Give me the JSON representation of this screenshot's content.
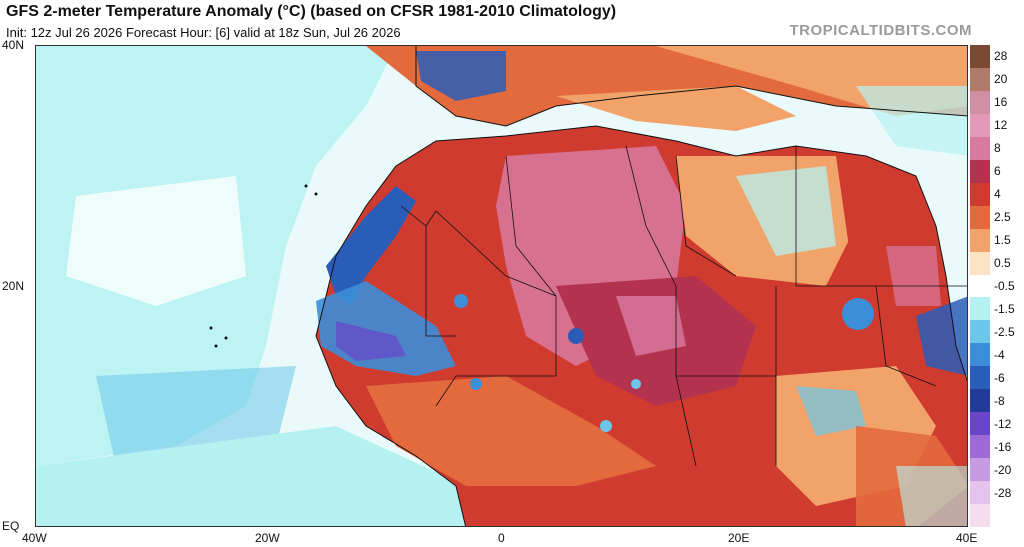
{
  "header": {
    "title": "GFS 2-meter Temperature Anomaly (°C) (based on CFSR 1981-2010 Climatology)",
    "subtitle": "Init: 12z Jul 26 2026   Forecast Hour: [6]   valid at 18z Sun, Jul 26 2026",
    "brand": "TROPICALTIDBITS.COM"
  },
  "axes": {
    "lat_labels": [
      "40N",
      "20N",
      "EQ"
    ],
    "lon_labels": [
      "40W",
      "20W",
      "0",
      "20E",
      "40E"
    ]
  },
  "colorbar": {
    "labels": [
      "28",
      "20",
      "16",
      "12",
      "8",
      "6",
      "4",
      "2.5",
      "1.5",
      "0.5",
      "-0.5",
      "-1.5",
      "-2.5",
      "-4",
      "-6",
      "-8",
      "-12",
      "-16",
      "-20",
      "-28"
    ],
    "colors": [
      "#7a4a32",
      "#b07a6a",
      "#cf8fa3",
      "#e39ab8",
      "#d97aa0",
      "#b3334f",
      "#cf3b2f",
      "#e36a3d",
      "#f2a36a",
      "#fbe3c4",
      "#ffffff",
      "#b6f1f2",
      "#6cc7ea",
      "#3d8ed8",
      "#2a5db8",
      "#223b96",
      "#6a45c9",
      "#9d6ad8",
      "#c79ae4",
      "#e6c2ee",
      "#f4dcee"
    ]
  },
  "map": {
    "extent": {
      "lon": [
        -40,
        40
      ],
      "lat": [
        0,
        40
      ]
    },
    "colors": {
      "ocean_cool": "#b6f1f2",
      "ocean_neutral": "#ffffff",
      "land_warm": "#e36a3d",
      "land_hot": "#b3334f",
      "land_very_hot": "#d97aa0",
      "coast_cold": "#3d8ed8",
      "mediterranean_hot": "#cf3b2f"
    }
  }
}
